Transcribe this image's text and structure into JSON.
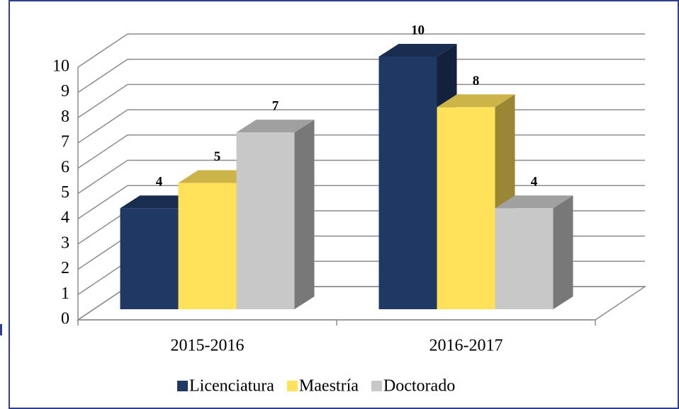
{
  "chart_data": {
    "type": "bar",
    "categories": [
      "2015-2016",
      "2016-2017"
    ],
    "series": [
      {
        "name": "Licenciatura",
        "color": "#1f3864",
        "values": [
          4,
          10
        ]
      },
      {
        "name": "Maestría",
        "color": "#ffe15a",
        "values": [
          5,
          8
        ]
      },
      {
        "name": "Doctorado",
        "color": "#c8c8c8",
        "values": [
          7,
          4
        ]
      }
    ],
    "ylim": [
      0,
      10
    ],
    "yticks": [
      0,
      1,
      2,
      3,
      4,
      5,
      6,
      7,
      8,
      9,
      10
    ],
    "grid": true,
    "legend": "bottom"
  }
}
